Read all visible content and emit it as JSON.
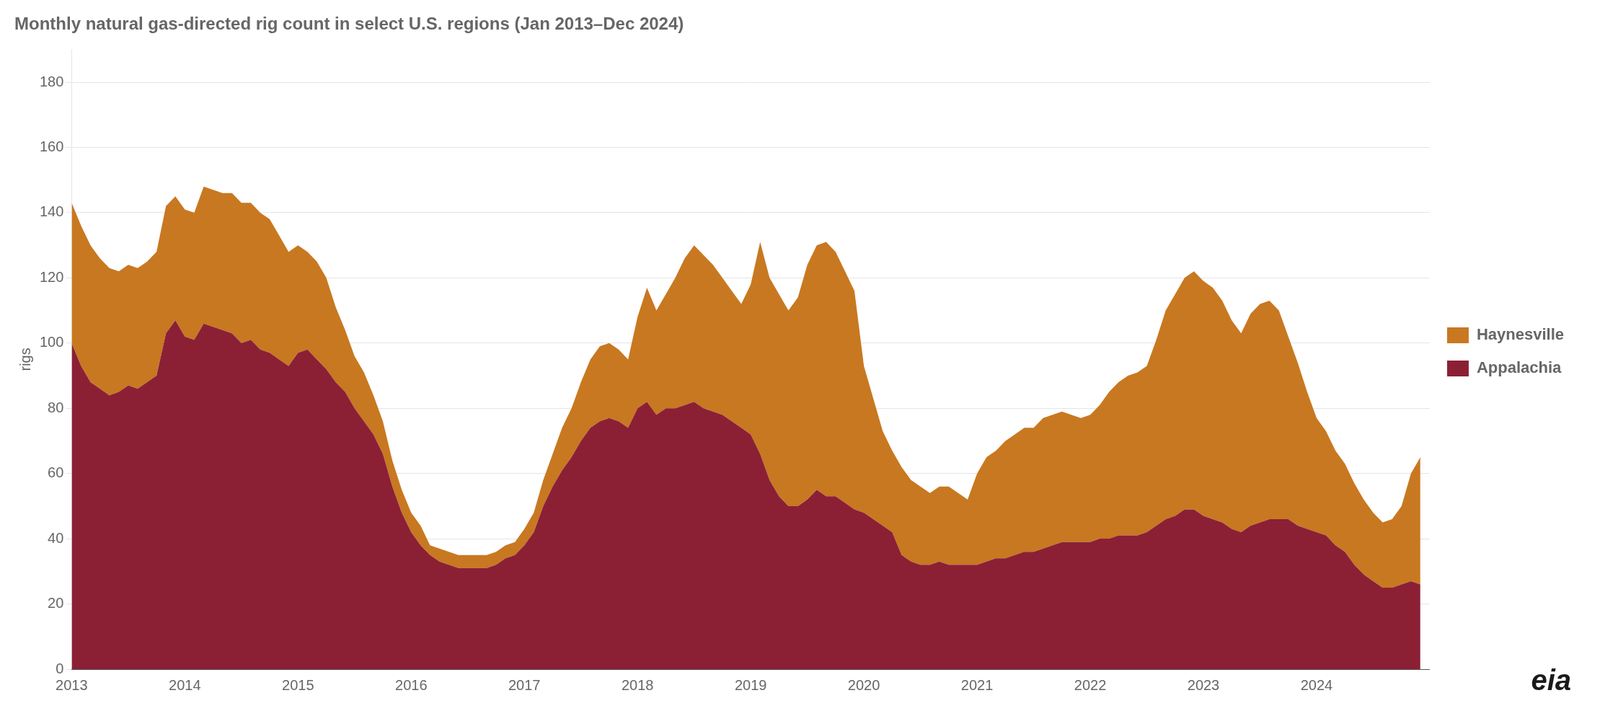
{
  "chart_data": {
    "type": "area",
    "title": "Monthly natural gas-directed rig count in select U.S. regions (Jan 2013–Dec 2024)",
    "ylabel": "rigs",
    "annotations": [
      "eia"
    ],
    "x": [
      2013,
      2013.0833333333333,
      2013.1666666666667,
      2013.25,
      2013.3333333333333,
      2013.4166666666667,
      2013.5,
      2013.5833333333333,
      2013.6666666666667,
      2013.75,
      2013.8333333333333,
      2013.9166666666667,
      2014,
      2014.0833333333333,
      2014.1666666666667,
      2014.25,
      2014.3333333333333,
      2014.4166666666667,
      2014.5,
      2014.5833333333333,
      2014.6666666666667,
      2014.75,
      2014.8333333333333,
      2014.9166666666667,
      2015,
      2015.0833333333333,
      2015.1666666666667,
      2015.25,
      2015.3333333333333,
      2015.4166666666667,
      2015.5,
      2015.5833333333333,
      2015.6666666666667,
      2015.75,
      2015.8333333333333,
      2015.9166666666667,
      2016,
      2016.0833333333333,
      2016.1666666666667,
      2016.25,
      2016.3333333333333,
      2016.4166666666667,
      2016.5,
      2016.5833333333333,
      2016.6666666666667,
      2016.75,
      2016.8333333333333,
      2016.9166666666667,
      2017,
      2017.0833333333333,
      2017.1666666666667,
      2017.25,
      2017.3333333333333,
      2017.4166666666667,
      2017.5,
      2017.5833333333333,
      2017.6666666666667,
      2017.75,
      2017.8333333333333,
      2017.9166666666667,
      2018,
      2018.0833333333333,
      2018.1666666666667,
      2018.25,
      2018.3333333333333,
      2018.4166666666667,
      2018.5,
      2018.5833333333333,
      2018.6666666666667,
      2018.75,
      2018.8333333333333,
      2018.9166666666667,
      2019,
      2019.0833333333333,
      2019.1666666666667,
      2019.25,
      2019.3333333333333,
      2019.4166666666667,
      2019.5,
      2019.5833333333333,
      2019.6666666666667,
      2019.75,
      2019.8333333333333,
      2019.9166666666667,
      2020,
      2020.0833333333333,
      2020.1666666666667,
      2020.25,
      2020.3333333333333,
      2020.4166666666667,
      2020.5,
      2020.5833333333333,
      2020.6666666666667,
      2020.75,
      2020.8333333333333,
      2020.9166666666667,
      2021,
      2021.0833333333333,
      2021.1666666666667,
      2021.25,
      2021.3333333333333,
      2021.4166666666667,
      2021.5,
      2021.5833333333333,
      2021.6666666666667,
      2021.75,
      2021.8333333333333,
      2021.9166666666667,
      2022,
      2022.0833333333333,
      2022.1666666666667,
      2022.25,
      2022.3333333333333,
      2022.4166666666667,
      2022.5,
      2022.5833333333333,
      2022.6666666666667,
      2022.75,
      2022.8333333333333,
      2022.9166666666667,
      2023,
      2023.0833333333333,
      2023.1666666666667,
      2023.25,
      2023.3333333333333,
      2023.4166666666667,
      2023.5,
      2023.5833333333333,
      2023.6666666666667,
      2023.75,
      2023.8333333333333,
      2023.9166666666667,
      2024,
      2024.0833333333333,
      2024.1666666666667,
      2024.25,
      2024.3333333333333,
      2024.4166666666667,
      2024.5,
      2024.5833333333333,
      2024.6666666666667,
      2024.75,
      2024.8333333333333,
      2024.9166666666667
    ],
    "series": [
      {
        "name": "Appalachia",
        "color": "#8B2035",
        "values": [
          100,
          93,
          88,
          86,
          84,
          85,
          87,
          86,
          88,
          90,
          103,
          107,
          102,
          101,
          106,
          105,
          104,
          103,
          100,
          101,
          98,
          97,
          95,
          93,
          97,
          98,
          95,
          92,
          88,
          85,
          80,
          76,
          72,
          66,
          56,
          48,
          42,
          38,
          35,
          33,
          32,
          31,
          31,
          31,
          31,
          32,
          34,
          35,
          38,
          42,
          50,
          56,
          61,
          65,
          70,
          74,
          76,
          77,
          76,
          74,
          80,
          82,
          78,
          80,
          80,
          81,
          82,
          80,
          79,
          78,
          76,
          74,
          72,
          66,
          58,
          53,
          50,
          50,
          52,
          55,
          53,
          53,
          51,
          49,
          48,
          46,
          44,
          42,
          35,
          33,
          32,
          32,
          33,
          32,
          32,
          32,
          32,
          33,
          34,
          34,
          35,
          36,
          36,
          37,
          38,
          39,
          39,
          39,
          39,
          40,
          40,
          41,
          41,
          41,
          42,
          44,
          46,
          47,
          49,
          49,
          47,
          46,
          45,
          43,
          42,
          44,
          45,
          46,
          46,
          46,
          44,
          43,
          42,
          41,
          38,
          36,
          32,
          29,
          27,
          25,
          25,
          26,
          27,
          26
        ]
      },
      {
        "name": "Haynesville",
        "color": "#C87820",
        "values": [
          43,
          43,
          42,
          40,
          39,
          37,
          37,
          37,
          37,
          38,
          39,
          38,
          39,
          39,
          42,
          42,
          42,
          43,
          43,
          42,
          42,
          41,
          38,
          35,
          33,
          30,
          30,
          28,
          23,
          19,
          16,
          15,
          12,
          10,
          8,
          7,
          6,
          6,
          3,
          4,
          4,
          4,
          4,
          4,
          4,
          4,
          4,
          4,
          5,
          6,
          8,
          10,
          13,
          15,
          18,
          21,
          23,
          23,
          22,
          21,
          28,
          35,
          32,
          35,
          40,
          45,
          48,
          47,
          45,
          42,
          40,
          38,
          46,
          65,
          62,
          62,
          60,
          64,
          72,
          75,
          78,
          75,
          71,
          67,
          45,
          37,
          29,
          25,
          27,
          25,
          24,
          22,
          23,
          24,
          22,
          20,
          28,
          32,
          33,
          36,
          37,
          38,
          38,
          40,
          40,
          40,
          39,
          38,
          39,
          41,
          45,
          47,
          49,
          50,
          51,
          57,
          64,
          68,
          71,
          73,
          72,
          71,
          68,
          64,
          61,
          65,
          67,
          67,
          64,
          56,
          50,
          42,
          35,
          32,
          29,
          27,
          25,
          23,
          21,
          20,
          21,
          24,
          33,
          39
        ]
      }
    ],
    "xlim": [
      2013,
      2025
    ],
    "xticks": [
      2013,
      2014,
      2015,
      2016,
      2017,
      2018,
      2019,
      2020,
      2021,
      2022,
      2023,
      2024
    ],
    "ylim": [
      0,
      190
    ],
    "yticks": [
      0,
      20,
      40,
      60,
      80,
      100,
      120,
      140,
      160,
      180
    ],
    "grid": "y",
    "stacked": true,
    "legend": "right"
  }
}
